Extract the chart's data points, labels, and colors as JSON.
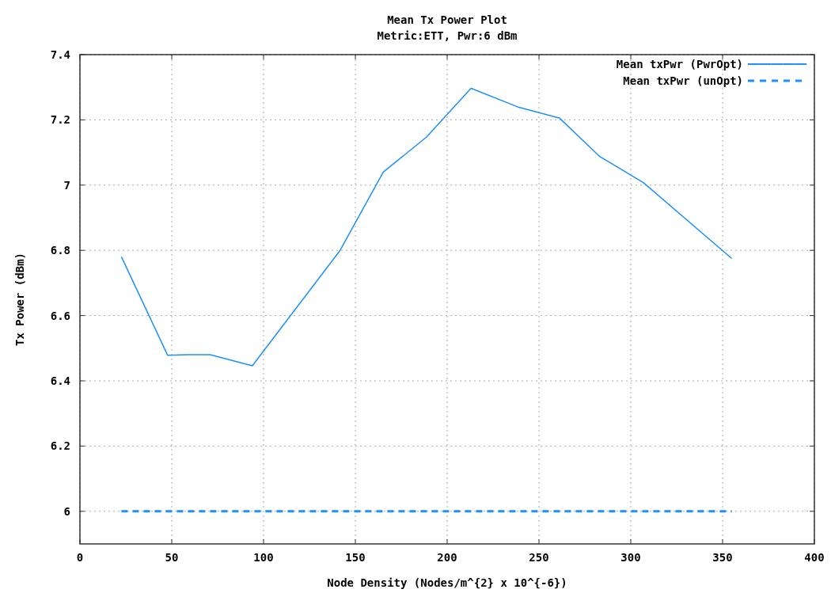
{
  "chart_data": {
    "type": "line",
    "title": "Mean Tx Power Plot",
    "subtitle": "Metric:ETT, Pwr:6 dBm",
    "xlabel": "Node Density (Nodes/m^{2} x 10^{-6})",
    "ylabel": "Tx Power (dBm)",
    "xlim": [
      0,
      400
    ],
    "xticks": [
      0,
      50,
      100,
      150,
      200,
      250,
      300,
      350,
      400
    ],
    "ylim": [
      5.9,
      7.4
    ],
    "yticks": [
      {
        "value": 6,
        "label": "6"
      },
      {
        "value": 6.2,
        "label": "6.2"
      },
      {
        "value": 6.4,
        "label": "6.4"
      },
      {
        "value": 6.6,
        "label": "6.6"
      },
      {
        "value": 6.8,
        "label": "6.8"
      },
      {
        "value": 7,
        "label": "7"
      },
      {
        "value": 7.2,
        "label": "7.2"
      },
      {
        "value": 7.4,
        "label": "7.4"
      }
    ],
    "grid": true,
    "legend": "top right",
    "series": [
      {
        "name": "Mean txPwr (PwrOpt)",
        "color": "#1e90ff",
        "line_style": "solid",
        "x": [
          22.6,
          47.8,
          58.7,
          70.9,
          93.9,
          141.7,
          165.2,
          188.7,
          213,
          238.3,
          261.3,
          283,
          307,
          355
        ],
        "values": [
          6.78,
          6.478,
          6.48,
          6.48,
          6.446,
          6.8,
          7.04,
          7.147,
          7.297,
          7.24,
          7.205,
          7.088,
          7.007,
          6.775
        ]
      },
      {
        "name": "Mean txPwr (unOpt)",
        "color": "#1e90ff",
        "line_style": "dashed",
        "x": [
          22.6,
          47.8,
          70.9,
          93.9,
          117.5,
          141.7,
          165.2,
          188.7,
          213,
          238.3,
          261.3,
          283,
          307,
          331,
          355
        ],
        "values": [
          6,
          6,
          6,
          6,
          6,
          6,
          6,
          6,
          6,
          6,
          6,
          6,
          6,
          6,
          6
        ]
      }
    ]
  }
}
